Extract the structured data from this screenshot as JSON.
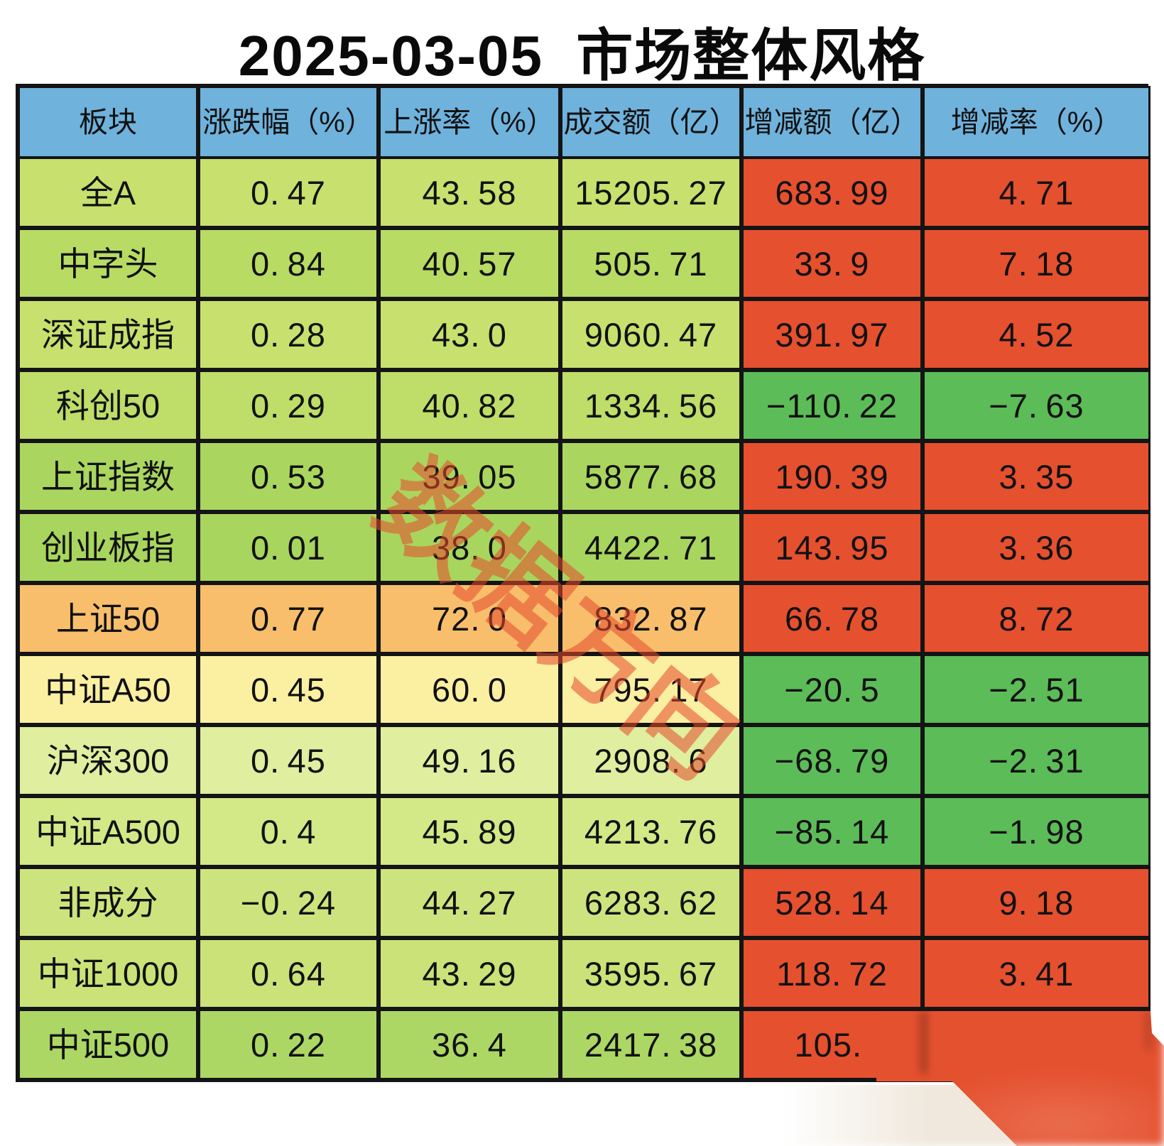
{
  "title": "2025-03-05 市场整体风格",
  "watermark": {
    "text": "数据方向",
    "color": "#E64B2D"
  },
  "colors": {
    "header_blue": "#6FB2DC",
    "positive_red": "#E5502F",
    "negative_green": "#5CBC57",
    "border_black": "#141414",
    "overlay_red": "#E4512F",
    "overlay_shadow_beige": "#EFE7DB"
  },
  "table": {
    "headers": [
      "板块",
      "涨跌幅（%）",
      "上涨率（%）",
      "成交额（亿）",
      "增减额（亿）",
      "增减率（%）"
    ],
    "rows": [
      {
        "label": "全A",
        "change_pct": "0.47",
        "rise_rate": "43.58",
        "turnover": "15205.27",
        "delta_amount": "683.99",
        "delta_rate": "4.71",
        "row_color": "#C7E06E",
        "delta_color": "#E5502F"
      },
      {
        "label": "中字头",
        "change_pct": "0.84",
        "rise_rate": "40.57",
        "turnover": "505.71",
        "delta_amount": "33.9",
        "delta_rate": "7.18",
        "row_color": "#B8DB64",
        "delta_color": "#E5502F"
      },
      {
        "label": "深证成指",
        "change_pct": "0.28",
        "rise_rate": "43.0",
        "turnover": "9060.47",
        "delta_amount": "391.97",
        "delta_rate": "4.52",
        "row_color": "#C7E06E",
        "delta_color": "#E5502F"
      },
      {
        "label": "科创50",
        "change_pct": "0.29",
        "rise_rate": "40.82",
        "turnover": "1334.56",
        "delta_amount": "-110.22",
        "delta_rate": "-7.63",
        "row_color": "#BEDD69",
        "delta_color": "#5CBC57"
      },
      {
        "label": "上证指数",
        "change_pct": "0.53",
        "rise_rate": "39.05",
        "turnover": "5877.68",
        "delta_amount": "190.39",
        "delta_rate": "3.35",
        "row_color": "#AAD65F",
        "delta_color": "#E5502F"
      },
      {
        "label": "创业板指",
        "change_pct": "0.01",
        "rise_rate": "38.0",
        "turnover": "4422.71",
        "delta_amount": "143.95",
        "delta_rate": "3.36",
        "row_color": "#A8D55E",
        "delta_color": "#E5502F"
      },
      {
        "label": "上证50",
        "change_pct": "0.77",
        "rise_rate": "72.0",
        "turnover": "832.87",
        "delta_amount": "66.78",
        "delta_rate": "8.72",
        "row_color": "#F8BE6C",
        "delta_color": "#E5502F"
      },
      {
        "label": "中证A50",
        "change_pct": "0.45",
        "rise_rate": "60.0",
        "turnover": "795.17",
        "delta_amount": "-20.5",
        "delta_rate": "-2.51",
        "row_color": "#FBEFA2",
        "delta_color": "#5CBC57"
      },
      {
        "label": "沪深300",
        "change_pct": "0.45",
        "rise_rate": "49.16",
        "turnover": "2908.6",
        "delta_amount": "-68.79",
        "delta_rate": "-2.31",
        "row_color": "#DFEE9F",
        "delta_color": "#5CBC57"
      },
      {
        "label": "中证A500",
        "change_pct": "0.4",
        "rise_rate": "45.89",
        "turnover": "4213.76",
        "delta_amount": "-85.14",
        "delta_rate": "-1.98",
        "row_color": "#D3E887",
        "delta_color": "#5CBC57"
      },
      {
        "label": "非成分",
        "change_pct": "-0.24",
        "rise_rate": "44.27",
        "turnover": "6283.62",
        "delta_amount": "528.14",
        "delta_rate": "9.18",
        "row_color": "#CDE47E",
        "delta_color": "#E5502F"
      },
      {
        "label": "中证1000",
        "change_pct": "0.64",
        "rise_rate": "43.29",
        "turnover": "3595.67",
        "delta_amount": "118.72",
        "delta_rate": "3.41",
        "row_color": "#CAE278",
        "delta_color": "#E5502F"
      },
      {
        "label": "中证500",
        "change_pct": "0.22",
        "rise_rate": "36.4",
        "turnover": "2417.38",
        "delta_amount": "105.",
        "delta_rate": "",
        "row_color": "#ACD765",
        "delta_color": "#E5502F"
      }
    ]
  },
  "chart_data": {
    "type": "table",
    "title": "2025-03-05 市场整体风格",
    "columns": [
      "板块",
      "涨跌幅（%）",
      "上涨率（%）",
      "成交额（亿）",
      "增减额（亿）",
      "增减率（%）"
    ],
    "rows": [
      [
        "全A",
        0.47,
        43.58,
        15205.27,
        683.99,
        4.71
      ],
      [
        "中字头",
        0.84,
        40.57,
        505.71,
        33.9,
        7.18
      ],
      [
        "深证成指",
        0.28,
        43.0,
        9060.47,
        391.97,
        4.52
      ],
      [
        "科创50",
        0.29,
        40.82,
        1334.56,
        -110.22,
        -7.63
      ],
      [
        "上证指数",
        0.53,
        39.05,
        5877.68,
        190.39,
        3.35
      ],
      [
        "创业板指",
        0.01,
        38.0,
        4422.71,
        143.95,
        3.36
      ],
      [
        "上证50",
        0.77,
        72.0,
        832.87,
        66.78,
        8.72
      ],
      [
        "中证A50",
        0.45,
        60.0,
        795.17,
        -20.5,
        -2.51
      ],
      [
        "沪深300",
        0.45,
        49.16,
        2908.6,
        -68.79,
        -2.31
      ],
      [
        "中证A500",
        0.4,
        45.89,
        4213.76,
        -85.14,
        -1.98
      ],
      [
        "非成分",
        -0.24,
        44.27,
        6283.62,
        528.14,
        9.18
      ],
      [
        "中证1000",
        0.64,
        43.29,
        3595.67,
        118.72,
        3.41
      ],
      [
        "中证500",
        0.22,
        36.4,
        2417.38,
        "105.(部分被遮挡)",
        null
      ]
    ],
    "notes": "增减额/增减率为正的单元格为红色背景，为负的为绿色背景；最后一行右下角被模糊红色色块遮挡"
  }
}
